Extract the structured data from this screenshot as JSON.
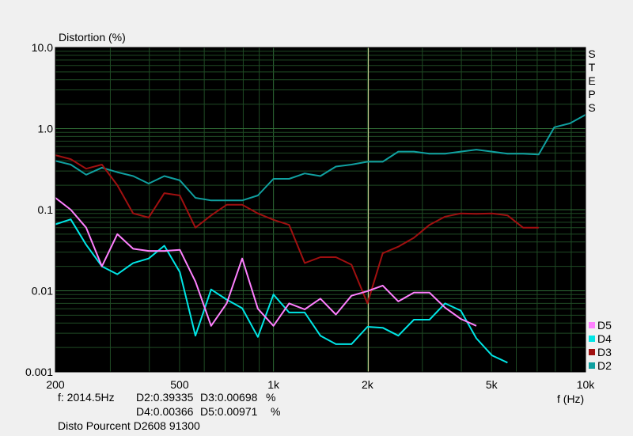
{
  "chart_data": {
    "type": "line",
    "title": "Distortion (%)",
    "xlabel": "f (Hz)",
    "ylabel": "Distortion (%)",
    "x_scale": "log",
    "y_scale": "log",
    "xlim": [
      200,
      10000
    ],
    "ylim": [
      0.001,
      10
    ],
    "x_ticks": [
      {
        "v": 200,
        "label": "200"
      },
      {
        "v": 500,
        "label": "500"
      },
      {
        "v": 1000,
        "label": "1k"
      },
      {
        "v": 2000,
        "label": "2k"
      },
      {
        "v": 5000,
        "label": "5k"
      },
      {
        "v": 10000,
        "label": "10k"
      }
    ],
    "y_ticks": [
      {
        "v": 10,
        "label": "10.0"
      },
      {
        "v": 1,
        "label": "1.0"
      },
      {
        "v": 0.1,
        "label": "0.1"
      },
      {
        "v": 0.01,
        "label": "0.01"
      },
      {
        "v": 0.001,
        "label": "0.001"
      }
    ],
    "cursor_x": 2014.5,
    "grid": true,
    "legend_position": "bottom-right",
    "series": [
      {
        "name": "D5",
        "color": "#ff80ff",
        "x": [
          200,
          224,
          251,
          282,
          316,
          355,
          398,
          447,
          501,
          562,
          631,
          708,
          794,
          891,
          1000,
          1122,
          1259,
          1413,
          1585,
          1778,
          2000,
          2239,
          2512,
          2818,
          3162,
          3548,
          3981,
          4467
        ],
        "y": [
          0.14,
          0.1,
          0.06,
          0.02,
          0.05,
          0.033,
          0.031,
          0.031,
          0.032,
          0.013,
          0.0037,
          0.007,
          0.025,
          0.006,
          0.0037,
          0.007,
          0.0059,
          0.008,
          0.0051,
          0.0087,
          0.0099,
          0.0116,
          0.0074,
          0.0095,
          0.0095,
          0.0062,
          0.0045,
          0.0037
        ]
      },
      {
        "name": "D4",
        "color": "#00e5e5",
        "x": [
          200,
          224,
          251,
          282,
          316,
          355,
          398,
          447,
          501,
          562,
          631,
          708,
          794,
          891,
          1000,
          1122,
          1259,
          1413,
          1585,
          1778,
          2000,
          2239,
          2512,
          2818,
          3162,
          3548,
          3981,
          4467,
          5012,
          5623
        ],
        "y": [
          0.066,
          0.076,
          0.037,
          0.02,
          0.016,
          0.022,
          0.025,
          0.036,
          0.017,
          0.0028,
          0.0104,
          0.0078,
          0.0061,
          0.0027,
          0.009,
          0.0054,
          0.0054,
          0.0028,
          0.0022,
          0.0022,
          0.0036,
          0.0035,
          0.0028,
          0.0044,
          0.0044,
          0.007,
          0.0057,
          0.0026,
          0.0016,
          0.0013
        ]
      },
      {
        "name": "D3",
        "color": "#a01010",
        "x": [
          200,
          224,
          251,
          282,
          316,
          355,
          398,
          447,
          501,
          562,
          631,
          708,
          794,
          891,
          1000,
          1122,
          1259,
          1413,
          1585,
          1778,
          2000,
          2239,
          2512,
          2818,
          3162,
          3548,
          3981,
          4467,
          5012,
          5623,
          6310,
          7079
        ],
        "y": [
          0.47,
          0.42,
          0.32,
          0.36,
          0.2,
          0.09,
          0.08,
          0.16,
          0.15,
          0.06,
          0.085,
          0.115,
          0.115,
          0.09,
          0.075,
          0.065,
          0.022,
          0.026,
          0.026,
          0.021,
          0.007,
          0.029,
          0.035,
          0.045,
          0.065,
          0.082,
          0.09,
          0.089,
          0.09,
          0.085,
          0.06,
          0.06
        ]
      },
      {
        "name": "D2",
        "color": "#10a0a0",
        "x": [
          200,
          224,
          251,
          282,
          316,
          355,
          398,
          447,
          501,
          562,
          631,
          708,
          794,
          891,
          1000,
          1122,
          1259,
          1413,
          1585,
          1778,
          2000,
          2239,
          2512,
          2818,
          3162,
          3548,
          3981,
          4467,
          5012,
          5623,
          6310,
          7079,
          7943,
          8913,
          10000
        ],
        "y": [
          0.4,
          0.36,
          0.27,
          0.33,
          0.29,
          0.26,
          0.21,
          0.26,
          0.23,
          0.14,
          0.13,
          0.13,
          0.13,
          0.15,
          0.24,
          0.24,
          0.28,
          0.26,
          0.34,
          0.36,
          0.39,
          0.39,
          0.52,
          0.52,
          0.49,
          0.49,
          0.52,
          0.55,
          0.52,
          0.49,
          0.49,
          0.48,
          1.04,
          1.16,
          1.48
        ]
      }
    ]
  },
  "side_label": "STEPS",
  "cursor_readout": {
    "freq": "f: 2014.5Hz",
    "d2": "D2:0.39335",
    "d3": "D3:0.00698",
    "unit1": "%",
    "d4": "D4:0.00366",
    "d5": "D5:0.00971",
    "unit2": "%"
  },
  "footer_title": "Disto Pourcent D2608 91300",
  "colors": {
    "plot_bg": "#000000",
    "grid_major": "#2f6b36",
    "grid_minor": "#1f4a24",
    "cursor": "#d8dd9c",
    "page_bg": "#f0f0f0"
  }
}
